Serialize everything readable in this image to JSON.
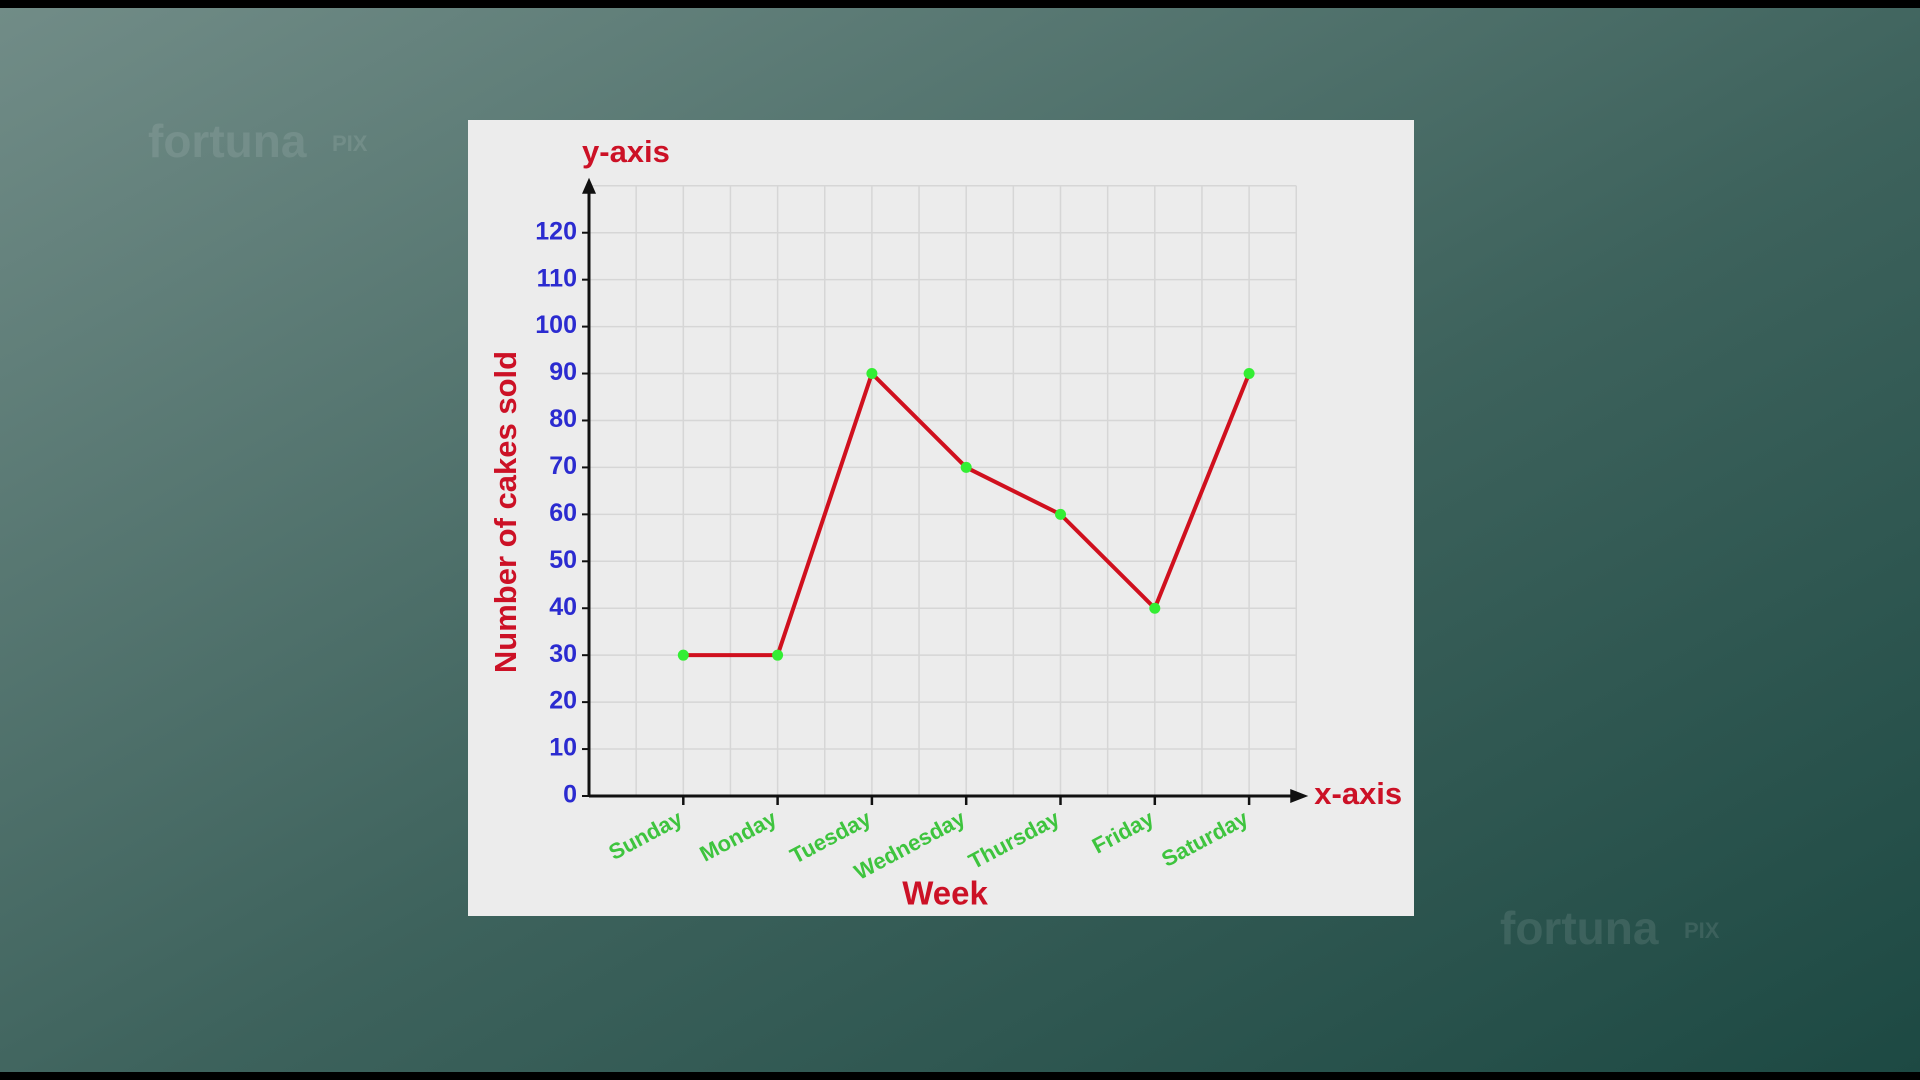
{
  "watermark": {
    "brand": "fortuna",
    "suffix": "PIX"
  },
  "chart_data": {
    "type": "line",
    "y_axis_marker": "y-axis",
    "x_axis_marker": "x-axis",
    "ylabel": "Number of cakes sold",
    "xlabel": "Week",
    "categories": [
      "Sunday",
      "Monday",
      "Tuesday",
      "Wednesday",
      "Thursday",
      "Friday",
      "Saturday"
    ],
    "values": [
      30,
      30,
      90,
      70,
      60,
      40,
      90
    ],
    "color": "#d0101e",
    "marker_color": "#33ee33",
    "ylim": [
      0,
      130
    ],
    "yticks": [
      0,
      10,
      20,
      30,
      40,
      50,
      60,
      70,
      80,
      90,
      100,
      110,
      120
    ],
    "grid": true
  }
}
